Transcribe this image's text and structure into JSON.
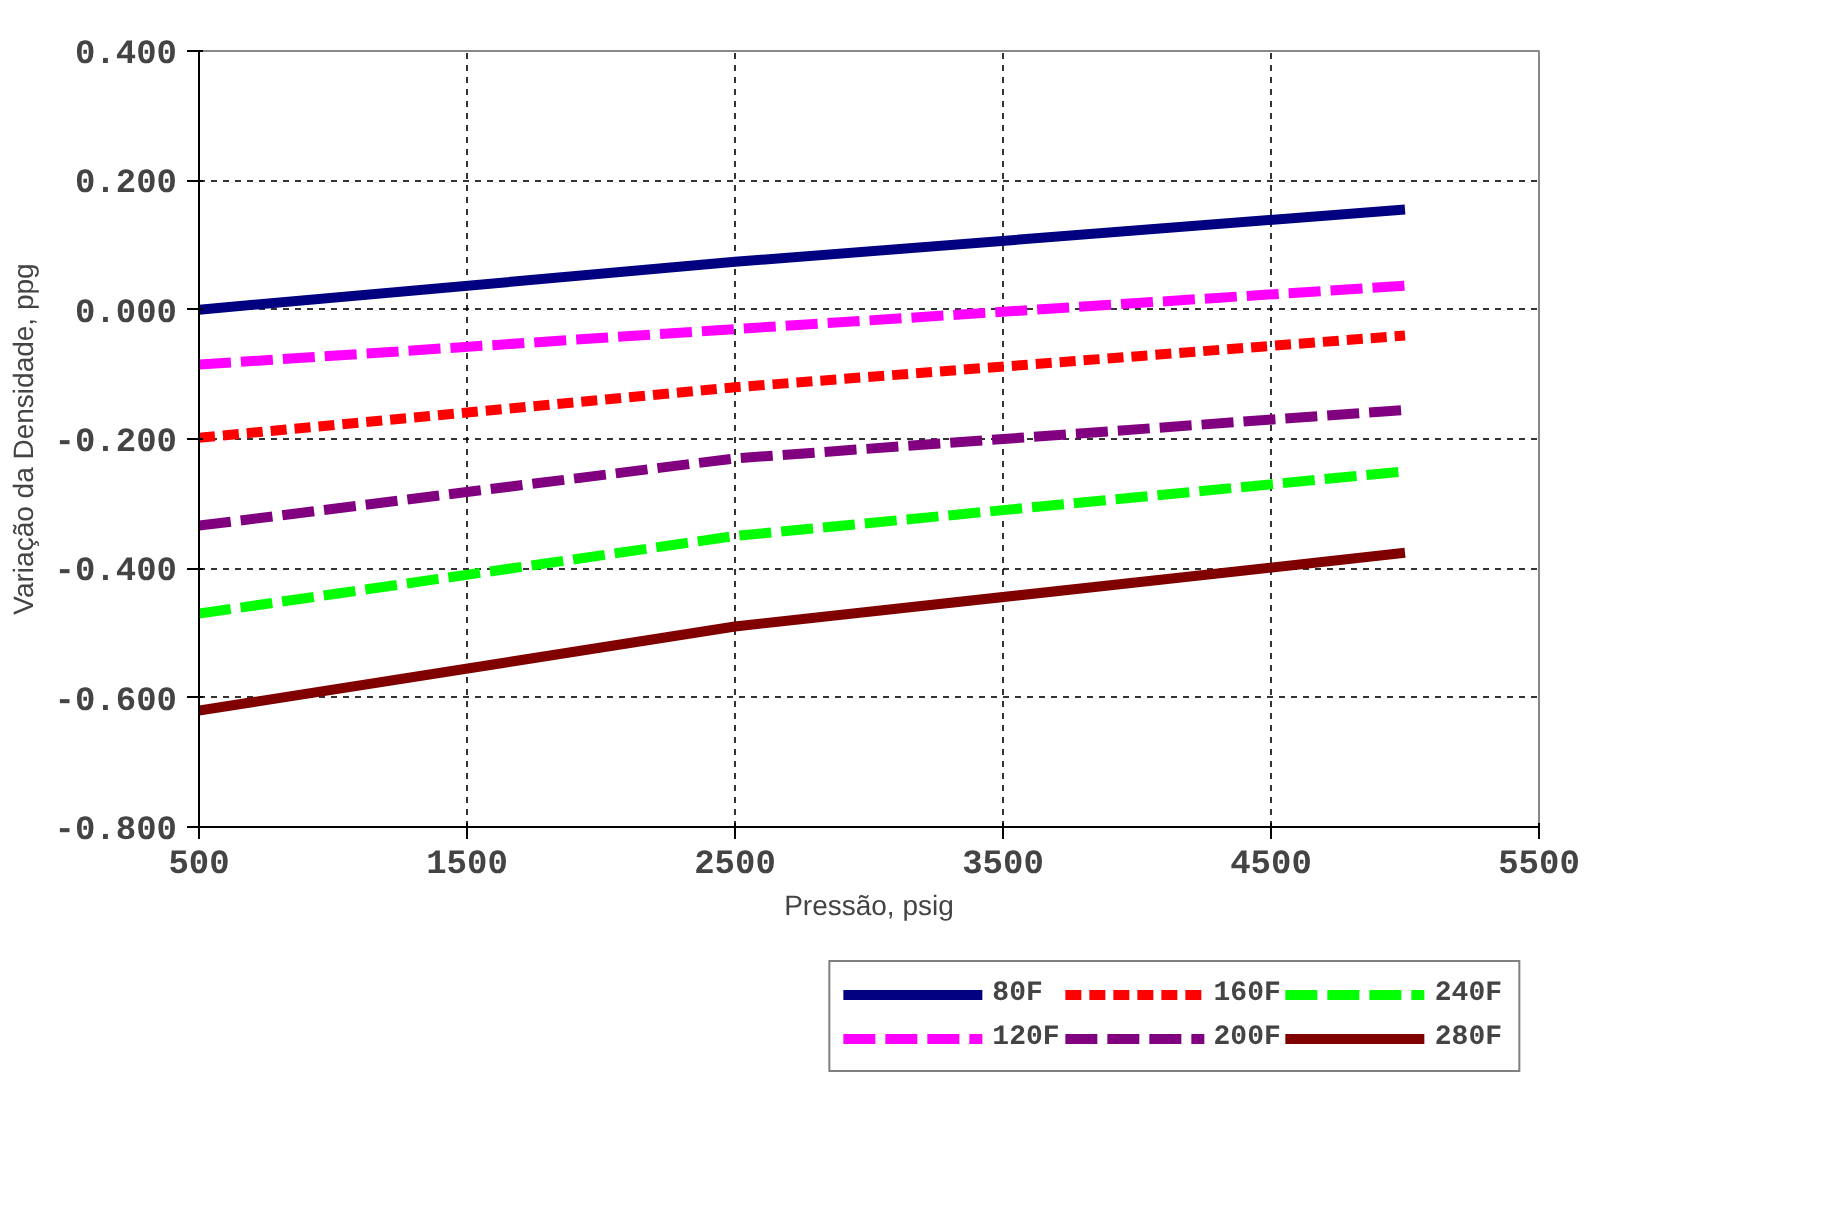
{
  "chart_data": {
    "type": "line",
    "xlabel": "Pressão, psig",
    "ylabel": "Variação da Densidade, ppg",
    "x": [
      500,
      2500,
      5000
    ],
    "xlim": [
      500,
      5500
    ],
    "xticks": [
      500,
      1500,
      2500,
      3500,
      4500,
      5500
    ],
    "ylim": [
      -0.8,
      0.4
    ],
    "yticks": [
      {
        "value": -0.8,
        "label": "-0.800"
      },
      {
        "value": -0.6,
        "label": "-0.600"
      },
      {
        "value": -0.4,
        "label": "-0.400"
      },
      {
        "value": -0.2,
        "label": "-0.200"
      },
      {
        "value": 0,
        "label": "0.000"
      },
      {
        "value": 0.2,
        "label": "0.200"
      },
      {
        "value": 0.4,
        "label": "0.400"
      }
    ],
    "grid": true,
    "legend": "bottom",
    "series": [
      {
        "name": "80F",
        "color": "#000080",
        "line_style": "solid",
        "values": [
          0.0,
          0.074,
          0.155
        ]
      },
      {
        "name": "120F",
        "color": "#ff00ff",
        "line_style": "dashed",
        "values": [
          -0.085,
          -0.03,
          0.037
        ]
      },
      {
        "name": "160F",
        "color": "#ff0000",
        "line_style": "dotted",
        "values": [
          -0.198,
          -0.12,
          -0.04
        ]
      },
      {
        "name": "200F",
        "color": "#800080",
        "line_style": "dashed",
        "values": [
          -0.334,
          -0.23,
          -0.155
        ]
      },
      {
        "name": "240F",
        "color": "#00ff00",
        "line_style": "dashed",
        "values": [
          -0.47,
          -0.35,
          -0.25
        ]
      },
      {
        "name": "280F",
        "color": "#800000",
        "line_style": "solid",
        "values": [
          -0.62,
          -0.49,
          -0.376
        ]
      }
    ]
  }
}
